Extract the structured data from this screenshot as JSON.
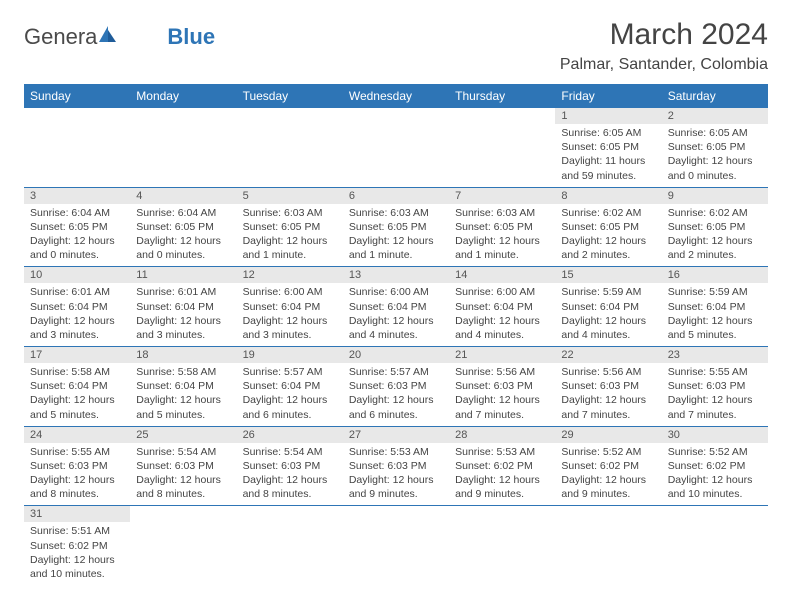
{
  "logo": {
    "part1": "Genera",
    "part2": "Blue"
  },
  "title": "March 2024",
  "location": "Palmar, Santander, Colombia",
  "colors": {
    "header_bg": "#2e75b6",
    "header_text": "#ffffff",
    "daynum_bg": "#e8e8e8",
    "border": "#2e75b6",
    "text": "#444444"
  },
  "weekdays": [
    "Sunday",
    "Monday",
    "Tuesday",
    "Wednesday",
    "Thursday",
    "Friday",
    "Saturday"
  ],
  "weeks": [
    [
      {
        "n": "",
        "lines": []
      },
      {
        "n": "",
        "lines": []
      },
      {
        "n": "",
        "lines": []
      },
      {
        "n": "",
        "lines": []
      },
      {
        "n": "",
        "lines": []
      },
      {
        "n": "1",
        "lines": [
          "Sunrise: 6:05 AM",
          "Sunset: 6:05 PM",
          "Daylight: 11 hours and 59 minutes."
        ]
      },
      {
        "n": "2",
        "lines": [
          "Sunrise: 6:05 AM",
          "Sunset: 6:05 PM",
          "Daylight: 12 hours and 0 minutes."
        ]
      }
    ],
    [
      {
        "n": "3",
        "lines": [
          "Sunrise: 6:04 AM",
          "Sunset: 6:05 PM",
          "Daylight: 12 hours and 0 minutes."
        ]
      },
      {
        "n": "4",
        "lines": [
          "Sunrise: 6:04 AM",
          "Sunset: 6:05 PM",
          "Daylight: 12 hours and 0 minutes."
        ]
      },
      {
        "n": "5",
        "lines": [
          "Sunrise: 6:03 AM",
          "Sunset: 6:05 PM",
          "Daylight: 12 hours and 1 minute."
        ]
      },
      {
        "n": "6",
        "lines": [
          "Sunrise: 6:03 AM",
          "Sunset: 6:05 PM",
          "Daylight: 12 hours and 1 minute."
        ]
      },
      {
        "n": "7",
        "lines": [
          "Sunrise: 6:03 AM",
          "Sunset: 6:05 PM",
          "Daylight: 12 hours and 1 minute."
        ]
      },
      {
        "n": "8",
        "lines": [
          "Sunrise: 6:02 AM",
          "Sunset: 6:05 PM",
          "Daylight: 12 hours and 2 minutes."
        ]
      },
      {
        "n": "9",
        "lines": [
          "Sunrise: 6:02 AM",
          "Sunset: 6:05 PM",
          "Daylight: 12 hours and 2 minutes."
        ]
      }
    ],
    [
      {
        "n": "10",
        "lines": [
          "Sunrise: 6:01 AM",
          "Sunset: 6:04 PM",
          "Daylight: 12 hours and 3 minutes."
        ]
      },
      {
        "n": "11",
        "lines": [
          "Sunrise: 6:01 AM",
          "Sunset: 6:04 PM",
          "Daylight: 12 hours and 3 minutes."
        ]
      },
      {
        "n": "12",
        "lines": [
          "Sunrise: 6:00 AM",
          "Sunset: 6:04 PM",
          "Daylight: 12 hours and 3 minutes."
        ]
      },
      {
        "n": "13",
        "lines": [
          "Sunrise: 6:00 AM",
          "Sunset: 6:04 PM",
          "Daylight: 12 hours and 4 minutes."
        ]
      },
      {
        "n": "14",
        "lines": [
          "Sunrise: 6:00 AM",
          "Sunset: 6:04 PM",
          "Daylight: 12 hours and 4 minutes."
        ]
      },
      {
        "n": "15",
        "lines": [
          "Sunrise: 5:59 AM",
          "Sunset: 6:04 PM",
          "Daylight: 12 hours and 4 minutes."
        ]
      },
      {
        "n": "16",
        "lines": [
          "Sunrise: 5:59 AM",
          "Sunset: 6:04 PM",
          "Daylight: 12 hours and 5 minutes."
        ]
      }
    ],
    [
      {
        "n": "17",
        "lines": [
          "Sunrise: 5:58 AM",
          "Sunset: 6:04 PM",
          "Daylight: 12 hours and 5 minutes."
        ]
      },
      {
        "n": "18",
        "lines": [
          "Sunrise: 5:58 AM",
          "Sunset: 6:04 PM",
          "Daylight: 12 hours and 5 minutes."
        ]
      },
      {
        "n": "19",
        "lines": [
          "Sunrise: 5:57 AM",
          "Sunset: 6:04 PM",
          "Daylight: 12 hours and 6 minutes."
        ]
      },
      {
        "n": "20",
        "lines": [
          "Sunrise: 5:57 AM",
          "Sunset: 6:03 PM",
          "Daylight: 12 hours and 6 minutes."
        ]
      },
      {
        "n": "21",
        "lines": [
          "Sunrise: 5:56 AM",
          "Sunset: 6:03 PM",
          "Daylight: 12 hours and 7 minutes."
        ]
      },
      {
        "n": "22",
        "lines": [
          "Sunrise: 5:56 AM",
          "Sunset: 6:03 PM",
          "Daylight: 12 hours and 7 minutes."
        ]
      },
      {
        "n": "23",
        "lines": [
          "Sunrise: 5:55 AM",
          "Sunset: 6:03 PM",
          "Daylight: 12 hours and 7 minutes."
        ]
      }
    ],
    [
      {
        "n": "24",
        "lines": [
          "Sunrise: 5:55 AM",
          "Sunset: 6:03 PM",
          "Daylight: 12 hours and 8 minutes."
        ]
      },
      {
        "n": "25",
        "lines": [
          "Sunrise: 5:54 AM",
          "Sunset: 6:03 PM",
          "Daylight: 12 hours and 8 minutes."
        ]
      },
      {
        "n": "26",
        "lines": [
          "Sunrise: 5:54 AM",
          "Sunset: 6:03 PM",
          "Daylight: 12 hours and 8 minutes."
        ]
      },
      {
        "n": "27",
        "lines": [
          "Sunrise: 5:53 AM",
          "Sunset: 6:03 PM",
          "Daylight: 12 hours and 9 minutes."
        ]
      },
      {
        "n": "28",
        "lines": [
          "Sunrise: 5:53 AM",
          "Sunset: 6:02 PM",
          "Daylight: 12 hours and 9 minutes."
        ]
      },
      {
        "n": "29",
        "lines": [
          "Sunrise: 5:52 AM",
          "Sunset: 6:02 PM",
          "Daylight: 12 hours and 9 minutes."
        ]
      },
      {
        "n": "30",
        "lines": [
          "Sunrise: 5:52 AM",
          "Sunset: 6:02 PM",
          "Daylight: 12 hours and 10 minutes."
        ]
      }
    ],
    [
      {
        "n": "31",
        "lines": [
          "Sunrise: 5:51 AM",
          "Sunset: 6:02 PM",
          "Daylight: 12 hours and 10 minutes."
        ]
      },
      {
        "n": "",
        "lines": []
      },
      {
        "n": "",
        "lines": []
      },
      {
        "n": "",
        "lines": []
      },
      {
        "n": "",
        "lines": []
      },
      {
        "n": "",
        "lines": []
      },
      {
        "n": "",
        "lines": []
      }
    ]
  ]
}
